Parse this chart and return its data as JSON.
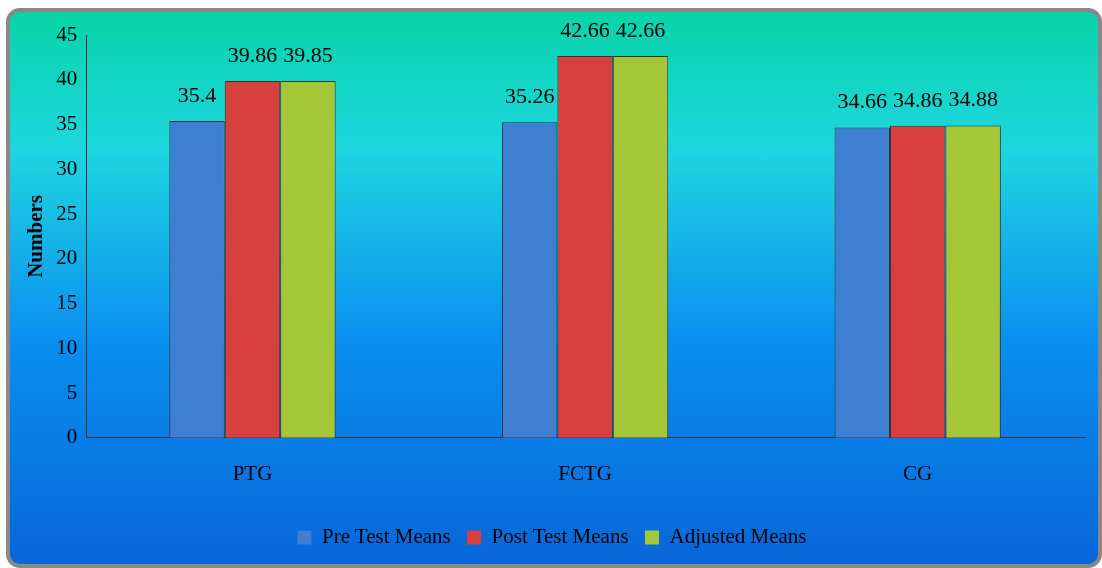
{
  "chart_data": {
    "type": "bar",
    "ylabel": "Numbers",
    "categories": [
      "PTG",
      "FCTG",
      "CG"
    ],
    "series": [
      {
        "name": "Pre Test Means",
        "color": "#3f7fd2",
        "values": [
          35.4,
          35.26,
          34.66
        ]
      },
      {
        "name": "Post Test Means",
        "color": "#d8403e",
        "values": [
          39.86,
          42.66,
          34.86
        ]
      },
      {
        "name": "Adjusted Means",
        "color": "#a6c63a",
        "values": [
          39.85,
          42.66,
          34.88
        ]
      }
    ],
    "ylim": [
      0,
      45
    ],
    "yticks": [
      0,
      5,
      10,
      15,
      20,
      25,
      30,
      35,
      40,
      45
    ],
    "data_labels": true,
    "legend": "bottom",
    "grid": false
  }
}
